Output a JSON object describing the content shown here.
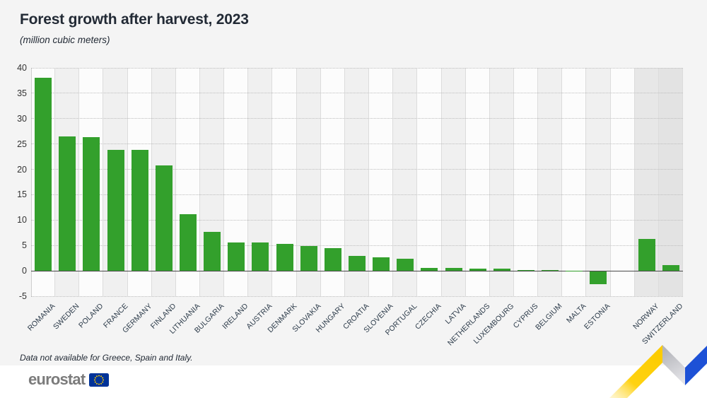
{
  "header": {
    "title": "Forest growth after harvest, 2023",
    "subtitle": "(million cubic meters)"
  },
  "note": "Data not available for Greece, Spain and Italy.",
  "footer": {
    "logo_text": "eurostat"
  },
  "colors": {
    "bar_green": "#33a02c",
    "page_background": "#f4f4f4",
    "stripe_light": "#fcfcfc",
    "stripe_gray": "#f0f0f0",
    "stripe_efta_1": "#e7e7e7",
    "stripe_efta_2": "#e3e3e3",
    "zero_line": "#4a4a4a",
    "flag_blue": "#003399",
    "star_yellow": "#ffcc00",
    "ribbon_yellow": "#ffd211",
    "ribbon_blue": "#1d51d6",
    "ribbon_gray": "#c9c9cd"
  },
  "chart_data": {
    "type": "bar",
    "title": "Forest growth after harvest, 2023",
    "unit_label": "(million cubic meters)",
    "xlabel": "",
    "ylabel": "",
    "ylim": [
      -5,
      40
    ],
    "ytick_step": 5,
    "yticks": [
      40,
      35,
      30,
      25,
      20,
      15,
      10,
      5,
      0,
      -5
    ],
    "grid": "horizontal-dotted",
    "legend": "none",
    "gap_after_category": "ESTONIA",
    "efta_categories": [
      "NORWAY",
      "SWITZERLAND"
    ],
    "categories": [
      "ROMANIA",
      "SWEDEN",
      "POLAND",
      "FRANCE",
      "GERMANY",
      "FINLAND",
      "LITHUANIA",
      "BULGARIA",
      "IRELAND",
      "AUSTRIA",
      "DENMARK",
      "SLOVAKIA",
      "HUNGARY",
      "CROATIA",
      "SLOVENIA",
      "PORTUGAL",
      "CZECHIA",
      "LATVIA",
      "NETHERLANDS",
      "LUXEMBOURG",
      "CYPRUS",
      "BELGIUM",
      "MALTA",
      "ESTONIA",
      "NORWAY",
      "SWITZERLAND"
    ],
    "values": [
      38.1,
      26.5,
      26.4,
      23.9,
      23.9,
      20.8,
      11.1,
      7.7,
      5.6,
      5.6,
      5.3,
      4.9,
      4.5,
      3.0,
      2.7,
      2.4,
      0.6,
      0.6,
      0.5,
      0.4,
      0.2,
      0.2,
      0.03,
      -2.5,
      6.3,
      1.1
    ]
  }
}
